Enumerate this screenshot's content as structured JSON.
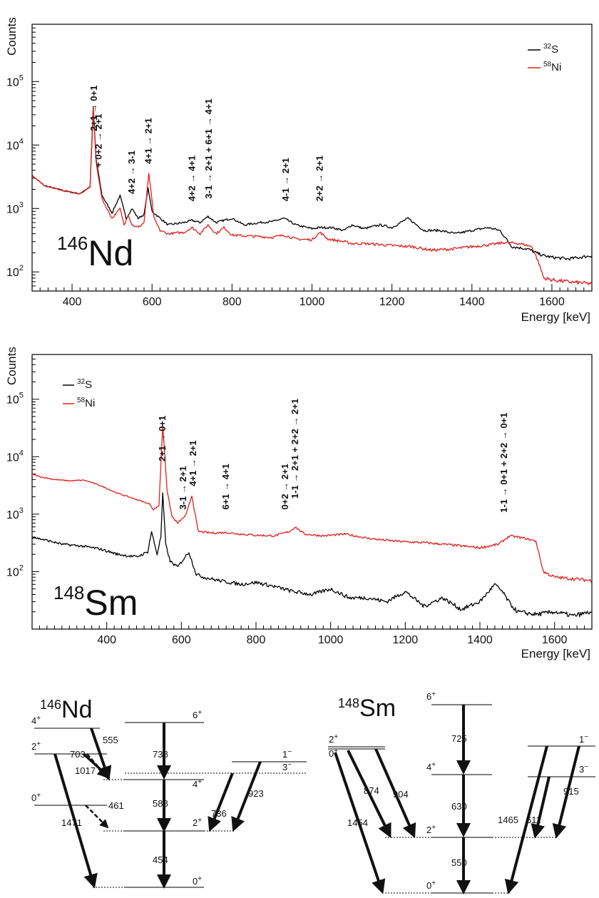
{
  "colors": {
    "s32": "#000000",
    "ni58": "#e0201b",
    "axis": "#000000"
  },
  "chart_data": [
    {
      "type": "line",
      "nucleus": "146Nd",
      "nucleus_mass": "146",
      "nucleus_symbol": "Nd",
      "ylabel": "Counts",
      "xlabel": "Energy [keV]",
      "xlim": [
        300,
        1700
      ],
      "ylim": [
        50,
        800000
      ],
      "yscale": "log",
      "xticks": [
        "400",
        "600",
        "800",
        "1000",
        "1200",
        "1400",
        "1600"
      ],
      "yticks": [
        {
          "base": "10",
          "exp": "2"
        },
        {
          "base": "10",
          "exp": "3"
        },
        {
          "base": "10",
          "exp": "4"
        },
        {
          "base": "10",
          "exp": "5"
        }
      ],
      "legend_position": "top-right",
      "legend": [
        {
          "mass": "32",
          "symbol": "S",
          "color": "#000000"
        },
        {
          "mass": "58",
          "symbol": "Ni",
          "color": "#e0201b"
        }
      ],
      "series": [
        {
          "name": "32S",
          "color": "#000000",
          "x": [
            300,
            330,
            380,
            420,
            445,
            453,
            460,
            475,
            500,
            520,
            535,
            550,
            565,
            580,
            590,
            600,
            615,
            640,
            680,
            700,
            720,
            740,
            760,
            780,
            800,
            830,
            870,
            900,
            930,
            960,
            1000,
            1020,
            1050,
            1080,
            1100,
            1130,
            1170,
            1200,
            1240,
            1280,
            1320,
            1360,
            1400,
            1440,
            1470,
            1500,
            1540,
            1560,
            1580,
            1600,
            1640,
            1700
          ],
          "y": [
            3300,
            2300,
            1900,
            1700,
            2200,
            40000,
            6000,
            1600,
            850,
            1600,
            700,
            1000,
            700,
            800,
            2100,
            900,
            750,
            550,
            600,
            650,
            600,
            750,
            600,
            650,
            700,
            550,
            600,
            620,
            700,
            550,
            480,
            500,
            500,
            450,
            550,
            480,
            550,
            500,
            700,
            450,
            450,
            400,
            450,
            500,
            450,
            250,
            230,
            200,
            180,
            170,
            160,
            180
          ]
        },
        {
          "name": "58Ni",
          "color": "#e0201b",
          "x": [
            300,
            330,
            380,
            420,
            445,
            453,
            460,
            475,
            500,
            520,
            530,
            540,
            550,
            565,
            580,
            592,
            605,
            620,
            640,
            680,
            700,
            720,
            740,
            760,
            780,
            800,
            830,
            870,
            900,
            930,
            960,
            1000,
            1020,
            1040,
            1080,
            1100,
            1130,
            1170,
            1200,
            1250,
            1300,
            1350,
            1400,
            1450,
            1480,
            1520,
            1550,
            1565,
            1580,
            1600,
            1640,
            1700
          ],
          "y": [
            3300,
            2300,
            1900,
            1700,
            2200,
            38000,
            5500,
            1400,
            700,
            1000,
            550,
            800,
            550,
            500,
            600,
            3600,
            700,
            450,
            400,
            420,
            500,
            400,
            550,
            400,
            500,
            380,
            370,
            360,
            350,
            380,
            330,
            320,
            420,
            330,
            300,
            280,
            280,
            270,
            260,
            250,
            220,
            230,
            250,
            270,
            290,
            280,
            250,
            150,
            80,
            75,
            70,
            65
          ]
        }
      ],
      "annotations": [
        {
          "x": 455,
          "y": 40000,
          "text": "2+1 → 0+1"
        },
        {
          "x": 467,
          "y": 3400,
          "text": "+ 0+2 → 2+1"
        },
        {
          "x": 550,
          "y": 1300,
          "text": "4+2 → 3-1"
        },
        {
          "x": 592,
          "y": 3900,
          "text": "4+1 → 2+1"
        },
        {
          "x": 700,
          "y": 1000,
          "text": "4+2 → 4+1"
        },
        {
          "x": 742,
          "y": 1100,
          "text": "3-1 → 2+1 + 6+1 → 4+1"
        },
        {
          "x": 935,
          "y": 1000,
          "text": "4-1 → 2+1"
        },
        {
          "x": 1020,
          "y": 1000,
          "text": "2+2 → 2+1"
        }
      ]
    },
    {
      "type": "line",
      "nucleus": "148Sm",
      "nucleus_mass": "148",
      "nucleus_symbol": "Sm",
      "ylabel": "Counts",
      "xlabel": "Energy [keV]",
      "xlim": [
        200,
        1700
      ],
      "ylim": [
        10,
        600000
      ],
      "yscale": "log",
      "xticks": [
        "400",
        "600",
        "800",
        "1000",
        "1200",
        "1400",
        "1600"
      ],
      "yticks": [
        {
          "base": "10",
          "exp": "2"
        },
        {
          "base": "10",
          "exp": "3"
        },
        {
          "base": "10",
          "exp": "4"
        },
        {
          "base": "10",
          "exp": "5"
        }
      ],
      "legend_position": "top-left",
      "legend": [
        {
          "mass": "32",
          "symbol": "S",
          "color": "#000000"
        },
        {
          "mass": "58",
          "symbol": "Ni",
          "color": "#e0201b"
        }
      ],
      "series": [
        {
          "name": "32S",
          "color": "#000000",
          "x": [
            200,
            240,
            280,
            330,
            380,
            430,
            480,
            510,
            520,
            535,
            545,
            550,
            558,
            570,
            590,
            620,
            640,
            660,
            700,
            760,
            800,
            850,
            900,
            950,
            1000,
            1050,
            1100,
            1150,
            1200,
            1250,
            1300,
            1350,
            1400,
            1440,
            1460,
            1480,
            1500,
            1550,
            1600,
            1650,
            1700
          ],
          "y": [
            400,
            350,
            300,
            280,
            250,
            200,
            180,
            220,
            500,
            200,
            400,
            2300,
            300,
            150,
            120,
            220,
            90,
            80,
            70,
            60,
            65,
            55,
            45,
            40,
            50,
            35,
            35,
            30,
            45,
            25,
            35,
            22,
            30,
            60,
            45,
            28,
            20,
            18,
            20,
            17,
            20
          ]
        },
        {
          "name": "58Ni",
          "color": "#e0201b",
          "x": [
            200,
            220,
            260,
            300,
            340,
            380,
            430,
            480,
            515,
            525,
            540,
            550,
            562,
            575,
            590,
            612,
            628,
            645,
            680,
            720,
            760,
            800,
            850,
            890,
            905,
            930,
            980,
            1040,
            1100,
            1150,
            1200,
            1250,
            1300,
            1350,
            1400,
            1450,
            1480,
            1520,
            1550,
            1570,
            1600,
            1650,
            1700
          ],
          "y": [
            5000,
            4500,
            4000,
            3800,
            3900,
            3200,
            2300,
            1800,
            1500,
            1200,
            1400,
            36000,
            2500,
            900,
            700,
            950,
            2100,
            500,
            470,
            480,
            450,
            430,
            420,
            500,
            600,
            450,
            420,
            450,
            380,
            350,
            330,
            320,
            300,
            280,
            260,
            300,
            420,
            380,
            340,
            100,
            80,
            75,
            70
          ]
        }
      ],
      "annotations": [
        {
          "x": 550,
          "y": 36000,
          "text": "2+1 → 0+1"
        },
        {
          "x": 605,
          "y": 900,
          "text": "3-1 → 2+1"
        },
        {
          "x": 632,
          "y": 2300,
          "text": "4+1 → 2+1"
        },
        {
          "x": 720,
          "y": 900,
          "text": "6+1 → 4+1"
        },
        {
          "x": 878,
          "y": 900,
          "text": "0+2 → 2+1"
        },
        {
          "x": 905,
          "y": 1400,
          "text": "1-1 → 2+1 + 2+2 → 2+1"
        },
        {
          "x": 1465,
          "y": 800,
          "text": "1-1 → 0+1 + 2+2 → 0+1"
        }
      ]
    }
  ],
  "level_schemes": [
    {
      "mass": "146",
      "symbol": "Nd",
      "levels": [
        {
          "label": "4",
          "sup": "+"
        },
        {
          "label": "6",
          "sup": "+"
        },
        {
          "label": "2",
          "sup": "+"
        },
        {
          "label": "1",
          "sup": "−"
        },
        {
          "label": "3",
          "sup": "−"
        },
        {
          "label": "4",
          "sup": "+"
        },
        {
          "label": "0",
          "sup": "+"
        },
        {
          "label": "2",
          "sup": "+"
        },
        {
          "label": "0",
          "sup": "+"
        }
      ],
      "energies": [
        "555",
        "703",
        "1017",
        "738",
        "923",
        "736",
        "1471",
        "461",
        "588",
        "454"
      ]
    },
    {
      "mass": "148",
      "symbol": "Sm",
      "levels": [
        {
          "label": "6",
          "sup": "+"
        },
        {
          "label": "2",
          "sup": "+"
        },
        {
          "label": "0",
          "sup": "+"
        },
        {
          "label": "1",
          "sup": "−"
        },
        {
          "label": "4",
          "sup": "+"
        },
        {
          "label": "3",
          "sup": "−"
        },
        {
          "label": "2",
          "sup": "+"
        },
        {
          "label": "0",
          "sup": "+"
        }
      ],
      "energies": [
        "725",
        "874",
        "904",
        "630",
        "1454",
        "1465",
        "611",
        "915",
        "550"
      ]
    }
  ]
}
